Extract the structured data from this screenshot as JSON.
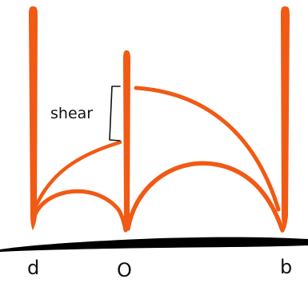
{
  "labels": {
    "shear": "shear",
    "point_left": "d",
    "point_middle": "O",
    "point_right": "b"
  },
  "colors": {
    "stroke_primary": "#f05a14",
    "baseline": "#000000",
    "ink": "#111111"
  }
}
